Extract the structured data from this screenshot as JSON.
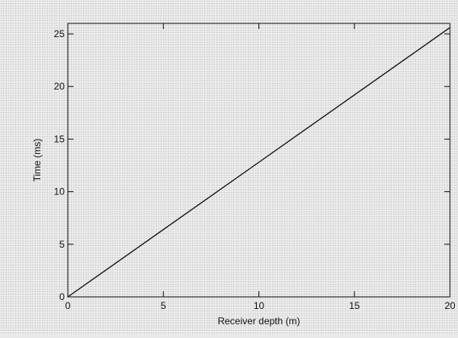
{
  "chart_data": {
    "type": "line",
    "title": "",
    "xlabel": "Receiver depth (m)",
    "ylabel": "Time (ms)",
    "xlim": [
      0,
      20
    ],
    "ylim": [
      0,
      26
    ],
    "x_ticks": [
      0,
      5,
      10,
      15,
      20
    ],
    "y_ticks": [
      0,
      5,
      10,
      15,
      20,
      25
    ],
    "x_tick_labels": [
      "0",
      "5",
      "10",
      "15",
      "20"
    ],
    "y_tick_labels": [
      "0",
      "5",
      "10",
      "15",
      "20",
      "25"
    ],
    "grid": false,
    "series": [
      {
        "x": [
          0,
          5,
          10,
          15,
          20
        ],
        "y": [
          0,
          6.4,
          12.8,
          19.2,
          25.6
        ]
      }
    ],
    "colors": {
      "line": "#111111",
      "axes": "#111111"
    }
  }
}
